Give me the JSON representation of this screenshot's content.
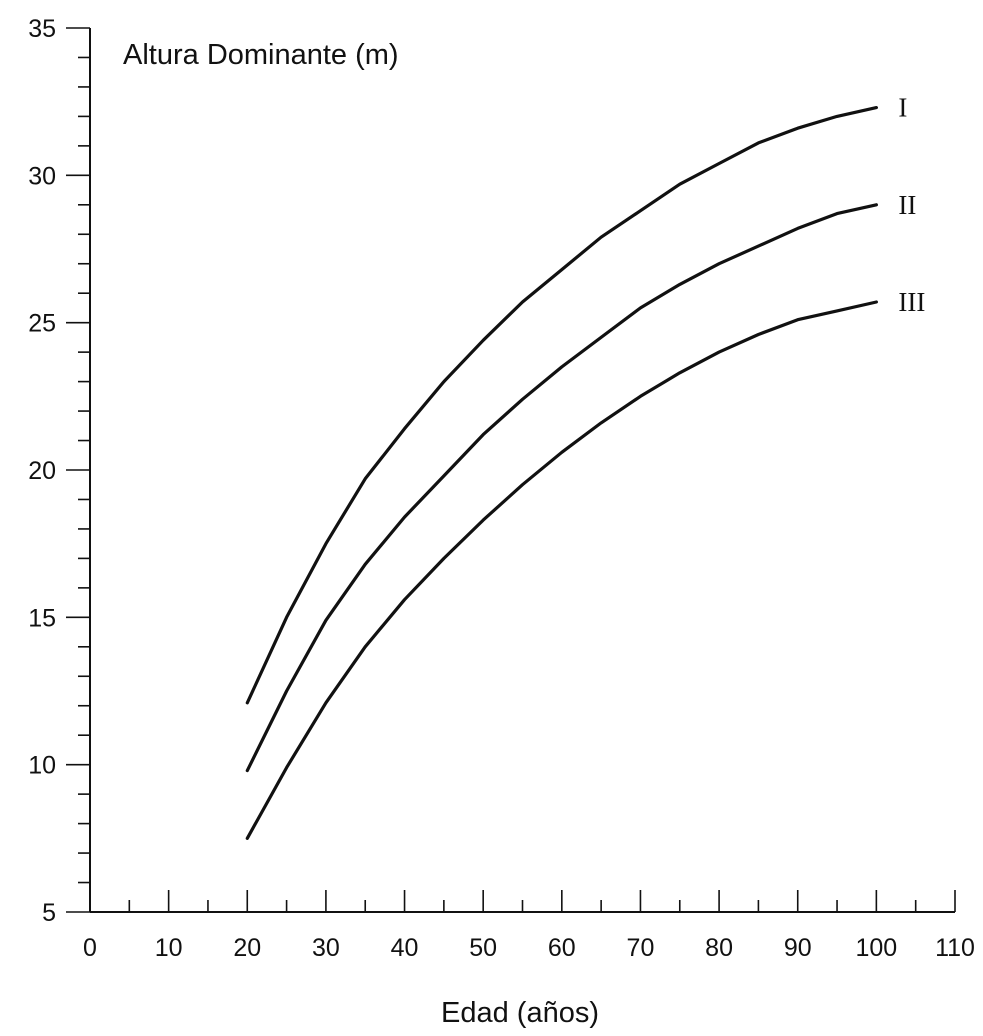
{
  "chart_data": {
    "type": "line",
    "title": "Altura Dominante (m)",
    "xlabel": "Edad (años)",
    "ylabel": "",
    "xlim": [
      0,
      110
    ],
    "ylim": [
      5,
      35
    ],
    "x_ticks": [
      0,
      10,
      20,
      30,
      40,
      50,
      60,
      70,
      80,
      90,
      100,
      110
    ],
    "y_ticks": [
      5,
      10,
      15,
      20,
      25,
      30,
      35
    ],
    "x_minor_step": 5,
    "y_minor_step": 1,
    "grid": false,
    "x": [
      20,
      25,
      30,
      35,
      40,
      45,
      50,
      55,
      60,
      65,
      70,
      75,
      80,
      85,
      90,
      95,
      100
    ],
    "series": [
      {
        "name": "I",
        "values": [
          12.1,
          15.0,
          17.5,
          19.7,
          21.4,
          23.0,
          24.4,
          25.7,
          26.8,
          27.9,
          28.8,
          29.7,
          30.4,
          31.1,
          31.6,
          32.0,
          32.3
        ]
      },
      {
        "name": "II",
        "values": [
          9.8,
          12.5,
          14.9,
          16.8,
          18.4,
          19.8,
          21.2,
          22.4,
          23.5,
          24.5,
          25.5,
          26.3,
          27.0,
          27.6,
          28.2,
          28.7,
          29.0
        ]
      },
      {
        "name": "III",
        "values": [
          7.5,
          9.9,
          12.1,
          14.0,
          15.6,
          17.0,
          18.3,
          19.5,
          20.6,
          21.6,
          22.5,
          23.3,
          24.0,
          24.6,
          25.1,
          25.4,
          25.7
        ]
      }
    ]
  }
}
